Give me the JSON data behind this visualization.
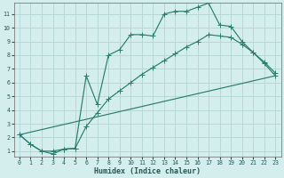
{
  "xlabel": "Humidex (Indice chaleur)",
  "bg_color": "#d4eeee",
  "grid_color": "#b8d8d8",
  "line_color": "#2a7d6e",
  "xlim": [
    -0.5,
    23.5
  ],
  "ylim": [
    0.6,
    11.8
  ],
  "xticks": [
    0,
    1,
    2,
    3,
    4,
    5,
    6,
    7,
    8,
    9,
    10,
    11,
    12,
    13,
    14,
    15,
    16,
    17,
    18,
    19,
    20,
    21,
    22,
    23
  ],
  "yticks": [
    1,
    2,
    3,
    4,
    5,
    6,
    7,
    8,
    9,
    10,
    11
  ],
  "line1_x": [
    0,
    1,
    2,
    3,
    4,
    5,
    6,
    7,
    8,
    9,
    10,
    11,
    12,
    13,
    14,
    15,
    16,
    17,
    18,
    19,
    20,
    21,
    22,
    23
  ],
  "line1_y": [
    2.2,
    1.5,
    1.0,
    0.8,
    1.15,
    1.2,
    6.5,
    4.4,
    8.0,
    8.4,
    9.5,
    9.5,
    9.4,
    11.0,
    11.2,
    11.2,
    11.5,
    11.8,
    10.2,
    10.1,
    9.0,
    8.2,
    7.5,
    6.7
  ],
  "line2_x": [
    0,
    1,
    2,
    3,
    4,
    5,
    6,
    7,
    8,
    9,
    10,
    11,
    12,
    13,
    14,
    15,
    16,
    17,
    18,
    19,
    20,
    21,
    22,
    23
  ],
  "line2_y": [
    2.2,
    1.5,
    1.0,
    1.0,
    1.15,
    1.2,
    2.8,
    3.8,
    4.8,
    5.4,
    6.0,
    6.6,
    7.1,
    7.6,
    8.1,
    8.6,
    9.0,
    9.5,
    9.4,
    9.3,
    8.8,
    8.2,
    7.4,
    6.5
  ],
  "line3_x": [
    0,
    23
  ],
  "line3_y": [
    2.2,
    6.5
  ]
}
